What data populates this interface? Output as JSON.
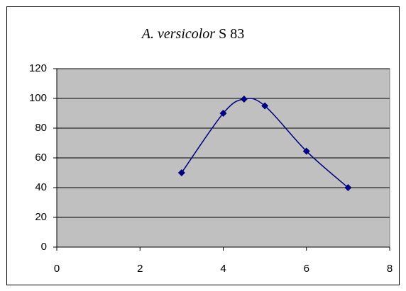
{
  "chart_data": {
    "type": "scatter",
    "title": [
      "A. versicolor",
      "S 83"
    ],
    "series": [
      {
        "color": "#000080",
        "x": [
          3,
          4,
          4.5,
          5,
          6,
          7
        ],
        "values": [
          50,
          90,
          99.5,
          95,
          64.5,
          40
        ]
      }
    ],
    "smooth": true,
    "xlim": [
      0,
      8
    ],
    "xticks": [
      0,
      2,
      4,
      6,
      8
    ],
    "ylim": [
      0,
      120
    ],
    "yticks": [
      0,
      20,
      40,
      60,
      80,
      100,
      120
    ],
    "grid": true,
    "plot_background": "#c0c0c0"
  }
}
